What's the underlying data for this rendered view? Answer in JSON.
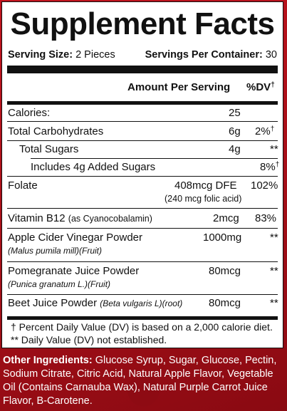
{
  "title": "Supplement Facts",
  "serving": {
    "size_label": "Serving Size:",
    "size_value": "2 Pieces",
    "per_container_label": "Servings Per Container:",
    "per_container_value": "30"
  },
  "header": {
    "amount": "Amount Per Serving",
    "dv": "%DV",
    "dv_mark": "†"
  },
  "rows": {
    "calories": {
      "name": "Calories:",
      "amount": "25",
      "dv": ""
    },
    "total_carbohydrates": {
      "name": "Total Carbohydrates",
      "amount": "6g",
      "dv": "2%",
      "dv_mark": "†"
    },
    "total_sugars": {
      "name": "Total Sugars",
      "amount": "4g",
      "dv": "**"
    },
    "added_sugars": {
      "name": "Includes 4g Added Sugars",
      "amount": "",
      "dv": "8%",
      "dv_mark": "†"
    },
    "folate": {
      "name": "Folate",
      "amount": "408mcg DFE",
      "amount_sub": "(240 mcg folic acid)",
      "dv": "102%"
    },
    "vitamin_b12": {
      "name": "Vitamin B12",
      "name_sub": "(as Cyanocobalamin)",
      "amount": "2mcg",
      "dv": "83%"
    },
    "acv": {
      "name": "Apple Cider Vinegar Powder",
      "name_sub": "(Malus pumila mill)(Fruit)",
      "amount": "1000mg",
      "dv": "**"
    },
    "pomegranate": {
      "name": "Pomegranate Juice Powder",
      "name_sub": "(Punica granatum L.)(Fruit)",
      "amount": "80mcg",
      "dv": "**"
    },
    "beet": {
      "name": "Beet Juice Powder",
      "name_sub": "(Beta vulgaris L)(root)",
      "amount": "80mcg",
      "dv": "**"
    }
  },
  "footnotes": {
    "dv_note": "† Percent Daily Value (DV) is based on a 2,000 calorie diet.",
    "not_established": "** Daily Value (DV) not established."
  },
  "ingredients": {
    "label": "Other Ingredients:",
    "text": " Glucose Syrup, Sugar, Glucose, Pectin, Sodium Citrate, Citric Acid, Natural Apple Flavor, Vegetable Oil (Contains Carnauba Wax), Natural Purple Carrot Juice Flavor, B-Carotene."
  },
  "colors": {
    "background": "#b5121b",
    "panel": "#ffffff",
    "ink": "#111111"
  }
}
